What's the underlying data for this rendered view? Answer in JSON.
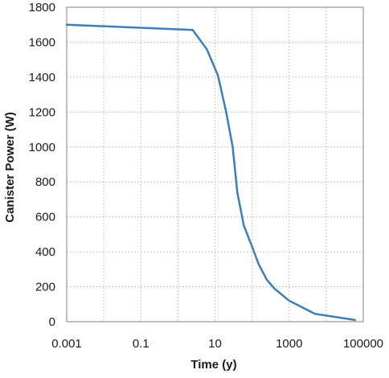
{
  "chart_data": {
    "type": "line",
    "title": "",
    "xlabel": "Time (y)",
    "ylabel": "Canister Power (W)",
    "x_scale": "log",
    "xlim": [
      0.001,
      100000
    ],
    "ylim": [
      0,
      1800
    ],
    "x_ticks": [
      0.001,
      0.1,
      10,
      1000,
      100000
    ],
    "x_tick_labels": [
      "0.001",
      "0.1",
      "10",
      "1000",
      "100000"
    ],
    "y_ticks": [
      0,
      200,
      400,
      600,
      800,
      1000,
      1200,
      1400,
      1600,
      1800
    ],
    "y_tick_labels": [
      "0",
      "200",
      "400",
      "600",
      "800",
      "1000",
      "1200",
      "1400",
      "1600",
      "1800"
    ],
    "grid": true,
    "legend": "none",
    "series": [
      {
        "color": "#3c7fb8",
        "x": [
          0.001,
          2.5,
          6,
          12,
          20,
          30,
          40,
          60,
          100,
          150,
          250,
          400,
          1000,
          5000,
          60000
        ],
        "y": [
          1700,
          1670,
          1560,
          1410,
          1200,
          1000,
          740,
          550,
          430,
          330,
          240,
          190,
          120,
          45,
          10
        ]
      }
    ]
  }
}
